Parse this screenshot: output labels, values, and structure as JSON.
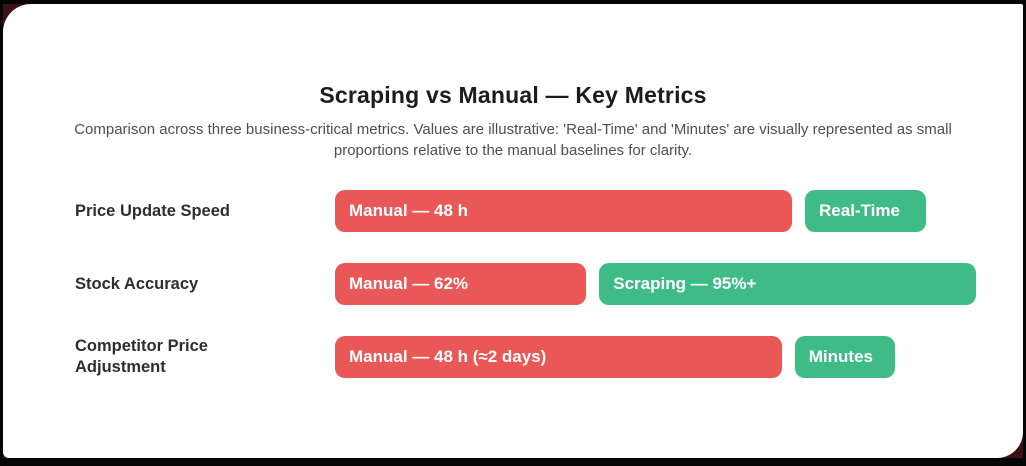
{
  "page": {
    "title": "Scraping vs Manual — Key Metrics",
    "subtitle": "Comparison across three business-critical metrics. Values are illustrative: 'Real-Time' and 'Minutes' are visually represented as small proportions relative to the manual baselines for clarity."
  },
  "colors": {
    "manual": "#ea5757",
    "scraping": "#3fbc86",
    "backdrop": "#3a1216",
    "frame": "#050505",
    "card": "#ffffff",
    "title_text": "#1c1c1c",
    "subtitle_text": "#4f4f4f",
    "label_text": "#2e2e2e",
    "bar_text": "#ffffff"
  },
  "rows": [
    {
      "label": "Price Update Speed",
      "bars": [
        {
          "series": "manual",
          "text": "Manual — 48 h",
          "width_pct": 71.3
        },
        {
          "series": "scraping",
          "text": "Real-Time",
          "width_pct": 18.8
        }
      ]
    },
    {
      "label": "Stock Accuracy",
      "bars": [
        {
          "series": "manual",
          "text": "Manual — 62%",
          "width_pct": 39.2
        },
        {
          "series": "scraping",
          "text": "Scraping — 95%+",
          "width_pct": 58.8
        }
      ]
    },
    {
      "label": "Competitor Price Adjustment",
      "bars": [
        {
          "series": "manual",
          "text": "Manual — 48 h (≈2 days)",
          "width_pct": 69.7
        },
        {
          "series": "scraping",
          "text": "Minutes",
          "width_pct": 15.7
        }
      ]
    }
  ],
  "chart_data": {
    "type": "bar",
    "orientation": "horizontal",
    "title": "Scraping vs Manual — Key Metrics",
    "subtitle": "Comparison across three business-critical metrics. Values are illustrative: 'Real-Time' and 'Minutes' are visually represented as small proportions relative to the manual baselines for clarity.",
    "categories": [
      "Price Update Speed",
      "Stock Accuracy",
      "Competitor Price Adjustment"
    ],
    "series": [
      {
        "name": "Manual",
        "color": "#ea5757",
        "data_labels": [
          "Manual — 48 h",
          "Manual — 62%",
          "Manual — 48 h (≈2 days)"
        ],
        "values_actual": [
          "48 h",
          "62%",
          "48 h (≈2 days)"
        ],
        "bar_length_pct_of_track": [
          71.3,
          39.2,
          69.7
        ]
      },
      {
        "name": "Scraping",
        "color": "#3fbc86",
        "data_labels": [
          "Real-Time",
          "Scraping — 95%+",
          "Minutes"
        ],
        "values_actual": [
          "Real-Time",
          "95%+",
          "Minutes"
        ],
        "bar_length_pct_of_track": [
          18.8,
          58.8,
          15.7
        ]
      }
    ],
    "legend": false,
    "axes": "none",
    "grid": false,
    "layout_hint": "paired horizontal bars per category; manual (red) bar followed by scraping (green) bar on the same line, widths proportional to values"
  }
}
